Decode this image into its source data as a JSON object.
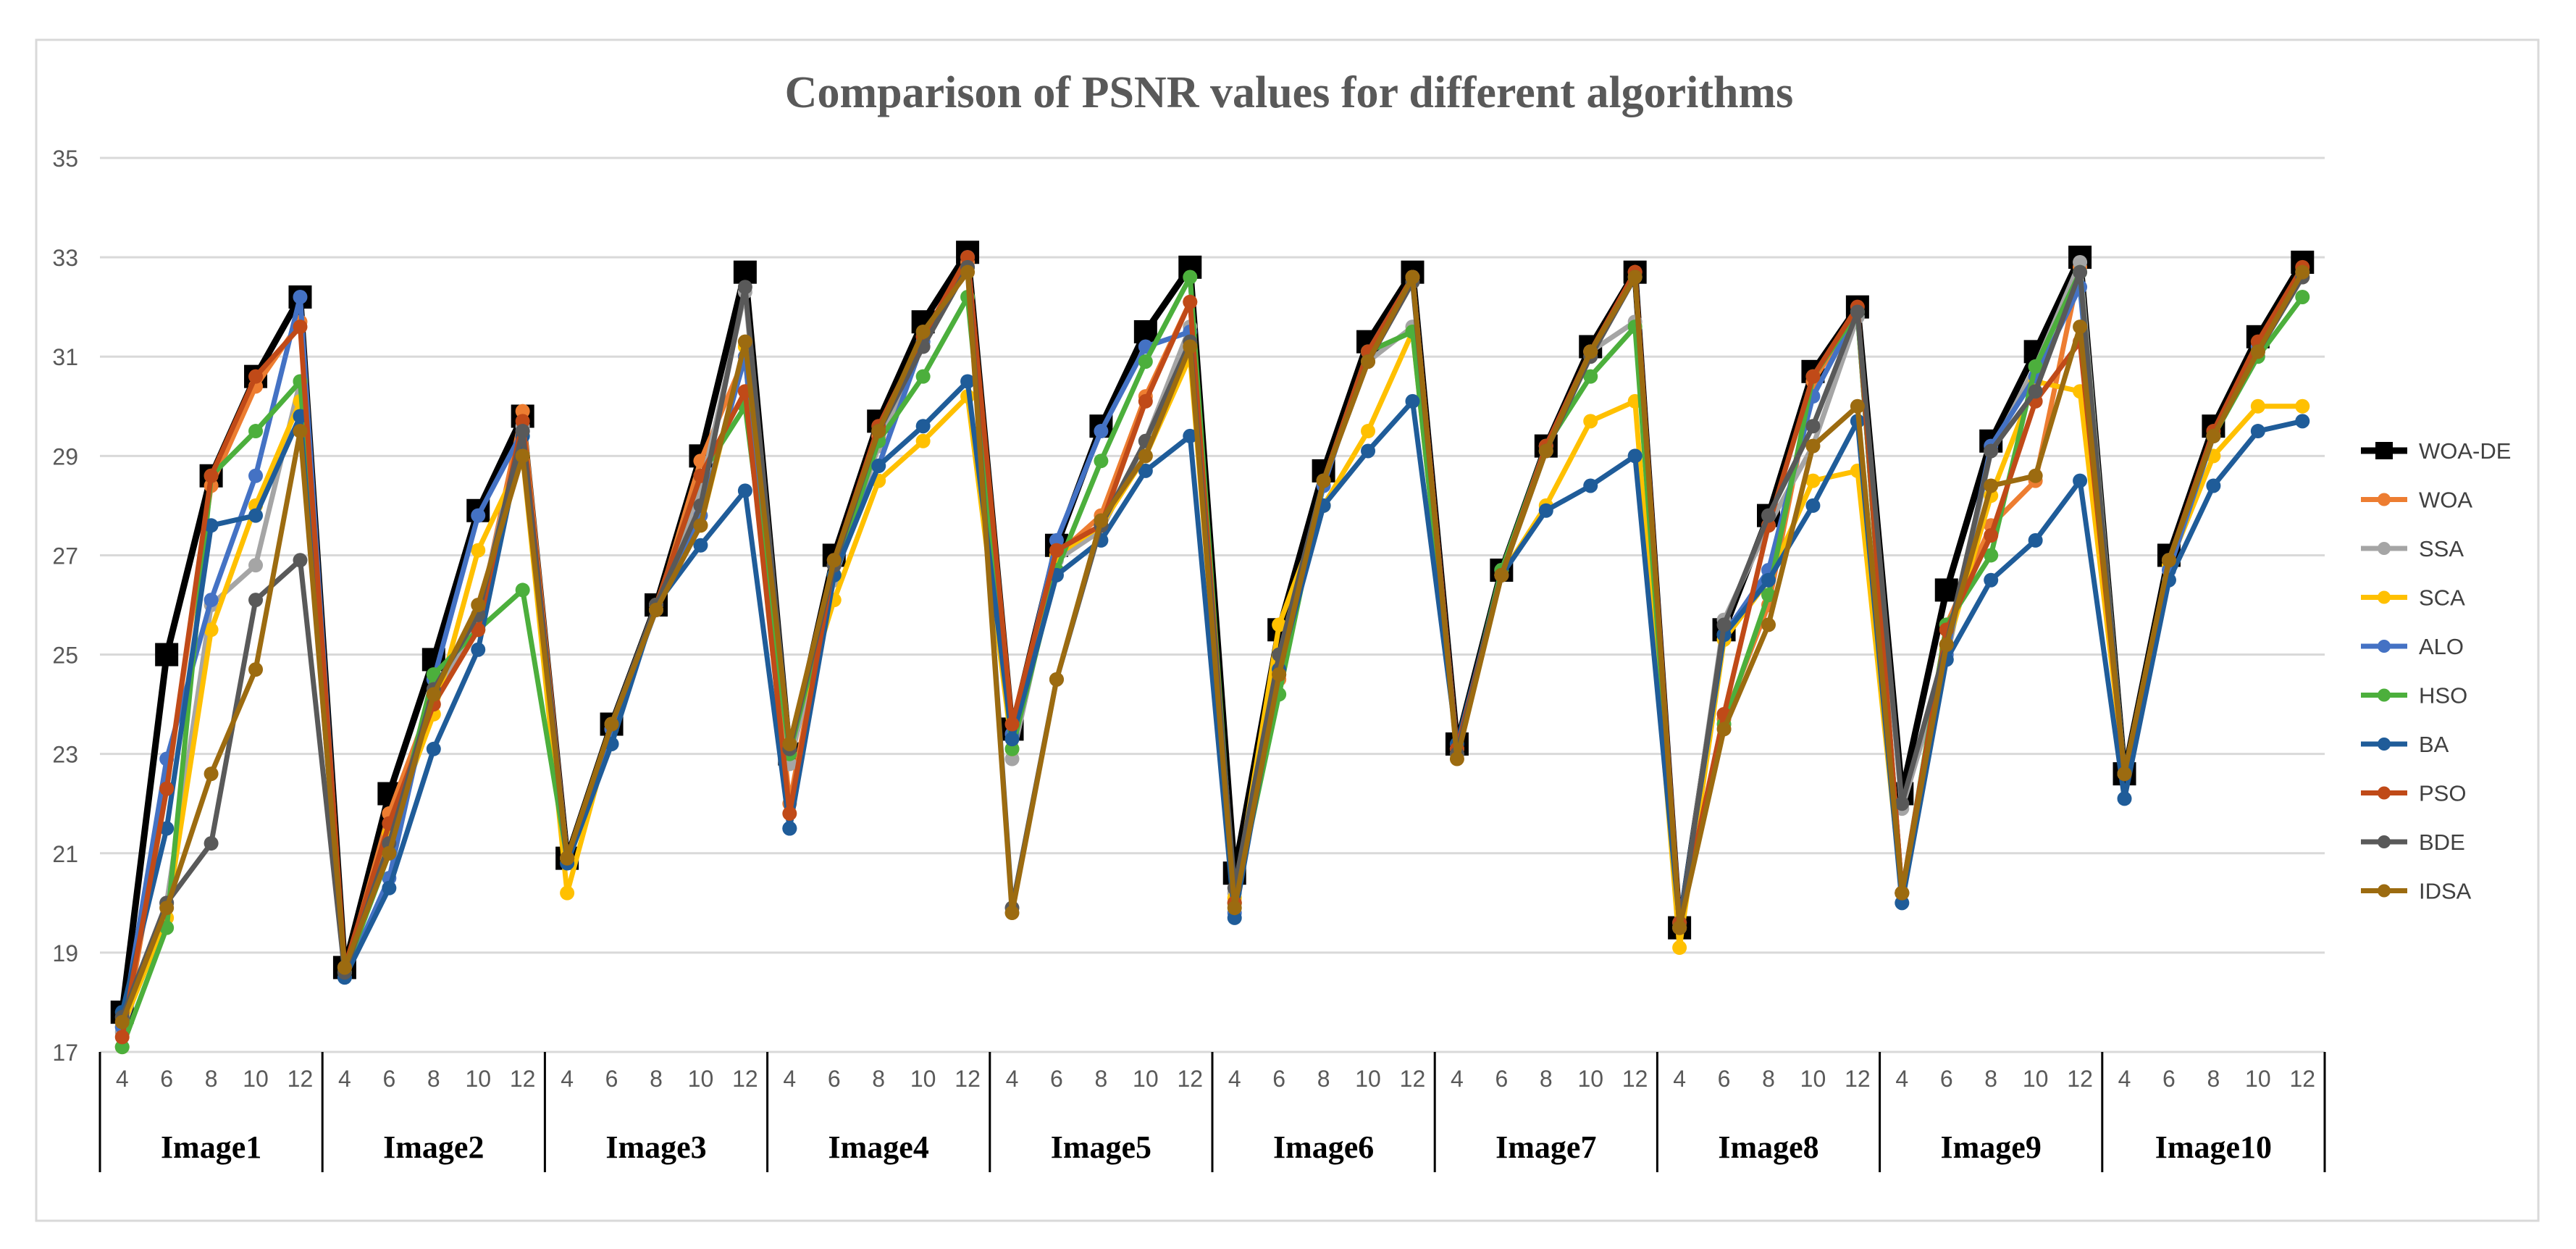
{
  "chart_data": {
    "type": "line",
    "title": "Comparison of PSNR values for different algorithms",
    "xlabel": "",
    "ylabel": "",
    "ylim": [
      17,
      35
    ],
    "yticks": [
      17,
      19,
      21,
      23,
      25,
      27,
      29,
      31,
      33,
      35
    ],
    "grid": true,
    "legend_position": "right",
    "x_sub_labels": [
      "4",
      "6",
      "8",
      "10",
      "12"
    ],
    "groups": [
      "Image1",
      "Image2",
      "Image3",
      "Image4",
      "Image5",
      "Image6",
      "Image7",
      "Image8",
      "Image9",
      "Image10"
    ],
    "series": [
      {
        "name": "WOA-DE",
        "color": "#000000",
        "marker": "square",
        "values": [
          17.8,
          25.0,
          28.6,
          30.6,
          32.2,
          18.7,
          22.2,
          24.9,
          27.9,
          29.8,
          20.9,
          23.6,
          26.0,
          29.0,
          32.7,
          23.0,
          27.0,
          29.7,
          31.7,
          33.1,
          23.5,
          27.2,
          29.6,
          31.5,
          32.8,
          20.6,
          25.5,
          28.7,
          31.3,
          32.7,
          23.2,
          26.7,
          29.2,
          31.2,
          32.7,
          19.5,
          25.5,
          27.8,
          30.7,
          32.0,
          22.2,
          26.3,
          29.3,
          31.1,
          33.0,
          22.6,
          27.0,
          29.6,
          31.4,
          32.9
        ]
      },
      {
        "name": "WOA",
        "color": "#ED7D31",
        "marker": "circle",
        "values": [
          17.1,
          22.3,
          28.4,
          30.4,
          31.7,
          18.6,
          21.8,
          24.2,
          25.7,
          29.9,
          20.9,
          23.6,
          25.9,
          28.9,
          31.0,
          22.0,
          26.8,
          29.4,
          31.4,
          32.9,
          23.4,
          27.0,
          27.8,
          30.2,
          32.1,
          20.0,
          24.5,
          28.5,
          31.1,
          32.6,
          23.1,
          26.6,
          29.2,
          31.1,
          32.7,
          19.5,
          23.7,
          26.0,
          30.5,
          31.9,
          20.2,
          25.6,
          27.6,
          28.5,
          32.8,
          22.6,
          26.9,
          29.4,
          31.2,
          32.6
        ]
      },
      {
        "name": "SSA",
        "color": "#A5A5A5",
        "marker": "circle",
        "values": [
          17.4,
          20.0,
          26.0,
          26.8,
          30.5,
          18.6,
          21.3,
          24.0,
          25.8,
          29.6,
          20.9,
          23.6,
          26.0,
          28.3,
          32.3,
          22.8,
          26.5,
          29.2,
          31.3,
          32.8,
          22.9,
          26.9,
          27.5,
          29.3,
          31.6,
          20.2,
          25.0,
          28.5,
          30.9,
          31.6,
          23.0,
          26.7,
          29.1,
          31.1,
          31.7,
          19.5,
          25.7,
          27.6,
          29.2,
          31.8,
          21.9,
          24.9,
          29.1,
          30.8,
          32.9,
          22.6,
          26.9,
          29.4,
          31.1,
          32.6
        ]
      },
      {
        "name": "SCA",
        "color": "#FFC000",
        "marker": "circle",
        "values": [
          17.5,
          19.7,
          25.5,
          28.0,
          30.1,
          18.7,
          21.4,
          23.8,
          27.1,
          29.0,
          20.2,
          23.5,
          26.0,
          27.6,
          31.2,
          23.2,
          26.1,
          28.5,
          29.3,
          30.2,
          23.1,
          27.0,
          27.6,
          29.0,
          31.0,
          20.1,
          25.6,
          28.0,
          29.5,
          31.5,
          23.1,
          26.6,
          28.0,
          29.7,
          30.1,
          19.1,
          25.3,
          26.5,
          28.5,
          28.7,
          20.2,
          25.1,
          28.2,
          30.5,
          30.3,
          22.6,
          26.8,
          29.0,
          30.0,
          30.0
        ]
      },
      {
        "name": "ALO",
        "color": "#4472C4",
        "marker": "circle",
        "values": [
          17.5,
          22.9,
          26.1,
          28.6,
          32.2,
          18.5,
          20.5,
          24.5,
          27.8,
          29.5,
          20.9,
          23.5,
          25.9,
          27.8,
          31.0,
          21.5,
          26.8,
          28.8,
          31.3,
          33.0,
          23.4,
          27.3,
          29.5,
          31.2,
          31.5,
          19.8,
          24.7,
          28.4,
          31.1,
          32.6,
          23.1,
          26.7,
          29.2,
          31.1,
          32.6,
          19.6,
          25.4,
          26.7,
          30.2,
          31.9,
          20.2,
          25.0,
          29.2,
          30.6,
          32.4,
          22.6,
          26.7,
          29.4,
          31.2,
          32.7
        ]
      },
      {
        "name": "HSO",
        "color": "#4CAF3C",
        "marker": "circle",
        "values": [
          17.1,
          19.5,
          28.6,
          29.5,
          30.5,
          18.6,
          21.0,
          24.6,
          25.5,
          26.3,
          20.9,
          23.6,
          26.0,
          28.6,
          30.0,
          23.0,
          26.6,
          29.3,
          30.6,
          32.2,
          23.1,
          26.7,
          28.9,
          30.9,
          32.6,
          20.0,
          24.2,
          28.5,
          31.1,
          31.5,
          23.1,
          26.7,
          29.2,
          30.6,
          31.6,
          19.6,
          23.6,
          26.2,
          30.6,
          31.9,
          20.2,
          25.6,
          27.0,
          30.8,
          32.7,
          22.6,
          26.9,
          29.4,
          31.0,
          32.2
        ]
      },
      {
        "name": "BA",
        "color": "#1F5C99",
        "marker": "circle",
        "values": [
          17.8,
          21.5,
          27.6,
          27.8,
          29.8,
          18.5,
          20.3,
          23.1,
          25.1,
          29.4,
          20.8,
          23.2,
          26.0,
          27.2,
          28.3,
          21.5,
          26.6,
          28.8,
          29.6,
          30.5,
          23.3,
          26.6,
          27.3,
          28.7,
          29.4,
          19.7,
          24.7,
          28.0,
          29.1,
          30.1,
          23.2,
          26.6,
          27.9,
          28.4,
          29.0,
          19.6,
          25.4,
          26.5,
          28.0,
          29.7,
          20.0,
          24.9,
          26.5,
          27.3,
          28.5,
          22.1,
          26.5,
          28.4,
          29.5,
          29.7
        ]
      },
      {
        "name": "PSO",
        "color": "#C04A18",
        "marker": "circle",
        "values": [
          17.3,
          22.3,
          28.6,
          30.6,
          31.6,
          18.7,
          21.6,
          24.0,
          25.5,
          29.7,
          20.9,
          23.6,
          26.0,
          28.6,
          30.3,
          21.8,
          26.9,
          29.6,
          31.4,
          33.0,
          23.6,
          27.1,
          27.6,
          30.1,
          32.1,
          20.0,
          24.6,
          28.5,
          31.1,
          32.6,
          23.1,
          26.6,
          29.2,
          31.1,
          32.7,
          19.6,
          23.8,
          27.6,
          30.6,
          32.0,
          20.2,
          25.5,
          27.4,
          30.1,
          31.3,
          22.6,
          26.9,
          29.5,
          31.3,
          32.8
        ]
      },
      {
        "name": "BDE",
        "color": "#595959",
        "marker": "circle",
        "values": [
          17.7,
          20.0,
          21.2,
          26.1,
          26.9,
          18.6,
          21.2,
          24.3,
          25.8,
          29.5,
          20.9,
          23.6,
          26.0,
          28.0,
          32.4,
          23.1,
          26.8,
          29.5,
          31.2,
          32.8,
          19.9,
          24.5,
          27.6,
          29.3,
          31.3,
          20.3,
          25.0,
          28.5,
          30.9,
          32.5,
          23.0,
          26.6,
          29.1,
          31.0,
          32.6,
          19.5,
          25.6,
          27.8,
          29.6,
          31.9,
          22.0,
          25.2,
          29.1,
          30.3,
          32.7,
          22.6,
          26.9,
          29.4,
          31.1,
          32.6
        ]
      },
      {
        "name": "IDSA",
        "color": "#9C6B10",
        "marker": "circle",
        "values": [
          17.6,
          19.9,
          22.6,
          24.7,
          29.5,
          18.7,
          21.0,
          24.2,
          26.0,
          29.0,
          20.9,
          23.6,
          25.9,
          27.6,
          31.3,
          23.2,
          26.9,
          29.5,
          31.5,
          32.7,
          19.8,
          24.5,
          27.7,
          29.0,
          31.2,
          19.9,
          24.6,
          28.5,
          30.9,
          32.6,
          22.9,
          26.6,
          29.1,
          31.1,
          32.6,
          19.5,
          23.5,
          25.6,
          29.2,
          30.0,
          20.2,
          25.2,
          28.4,
          28.6,
          31.6,
          22.6,
          26.9,
          29.4,
          31.1,
          32.7
        ]
      }
    ]
  }
}
